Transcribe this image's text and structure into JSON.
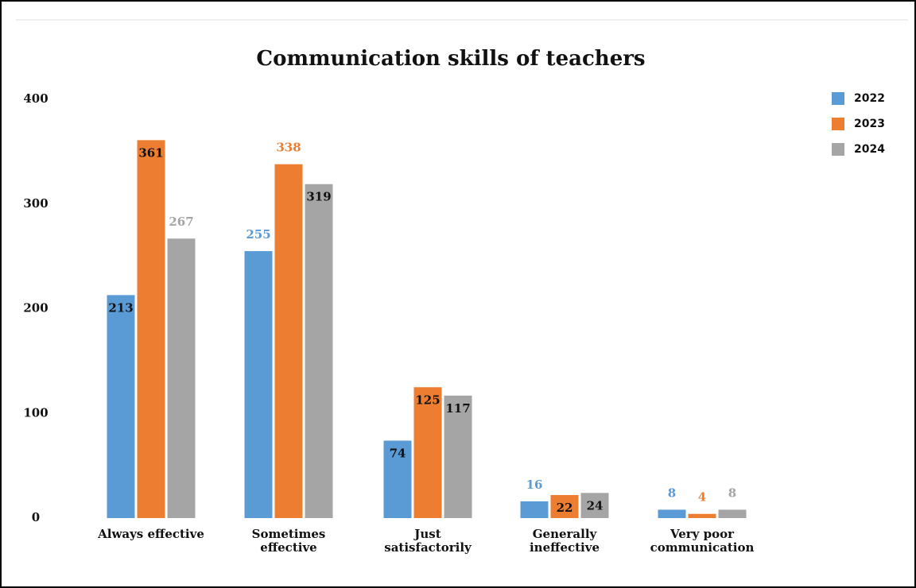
{
  "chart_data": {
    "type": "bar",
    "title": "Communication skills of teachers",
    "categories": [
      "Always effective",
      "Sometimes effective",
      "Just satisfactorily",
      "Generally ineffective",
      "Very poor communication"
    ],
    "series": [
      {
        "name": "2022",
        "color": "#5b9bd5",
        "values": [
          213,
          255,
          74,
          16,
          8
        ]
      },
      {
        "name": "2023",
        "color": "#ed7d31",
        "values": [
          361,
          338,
          125,
          22,
          4
        ]
      },
      {
        "name": "2024",
        "color": "#a5a5a5",
        "values": [
          267,
          319,
          117,
          24,
          8
        ]
      }
    ],
    "ylim": [
      0,
      400
    ],
    "yticks": [
      0,
      100,
      200,
      300,
      400
    ],
    "grid": false,
    "legend": "top-right"
  }
}
